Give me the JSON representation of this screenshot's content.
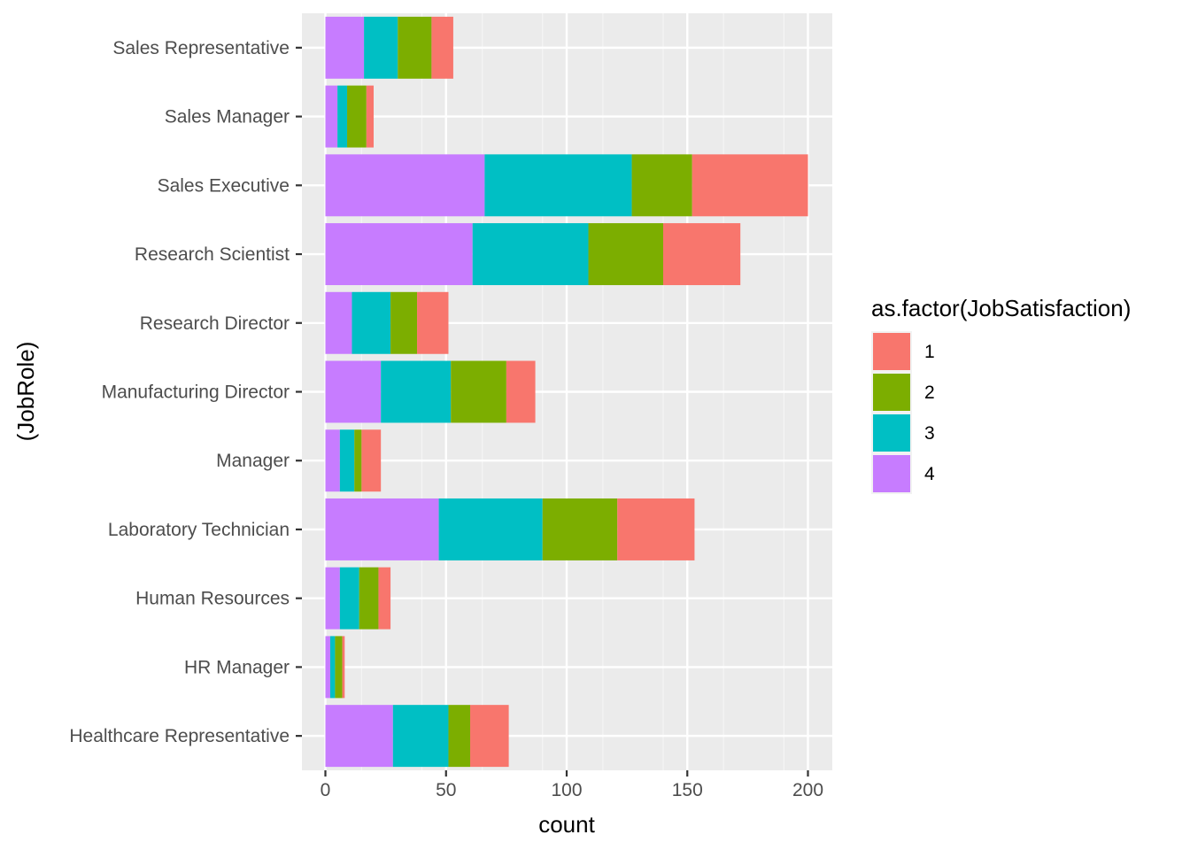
{
  "chart_data": {
    "type": "bar",
    "orientation": "horizontal",
    "stacked": true,
    "xlabel": "count",
    "ylabel": "(JobRole)",
    "xlim": [
      -10,
      210
    ],
    "x_ticks": [
      0,
      50,
      100,
      150,
      200
    ],
    "grid": true,
    "legend_position": "right",
    "legend_title": "as.factor(JobSatisfaction)",
    "categories": [
      "Healthcare Representative",
      "HR Manager",
      "Human Resources",
      "Laboratory Technician",
      "Manager",
      "Manufacturing Director",
      "Research Director",
      "Research Scientist",
      "Sales Executive",
      "Sales Manager",
      "Sales Representative"
    ],
    "series": [
      {
        "name": "4",
        "color": "#C77CFF",
        "values": [
          28,
          2,
          6,
          47,
          6,
          23,
          11,
          61,
          66,
          5,
          16
        ]
      },
      {
        "name": "3",
        "color": "#00BFC4",
        "values": [
          23,
          2,
          8,
          43,
          6,
          29,
          16,
          48,
          61,
          4,
          14
        ]
      },
      {
        "name": "2",
        "color": "#7CAE00",
        "values": [
          9,
          3,
          8,
          31,
          3,
          23,
          11,
          31,
          25,
          8,
          14
        ]
      },
      {
        "name": "1",
        "color": "#F8766D",
        "values": [
          16,
          1,
          5,
          32,
          8,
          12,
          13,
          32,
          48,
          3,
          9
        ]
      }
    ],
    "legend_order": [
      "1",
      "2",
      "3",
      "4"
    ]
  }
}
